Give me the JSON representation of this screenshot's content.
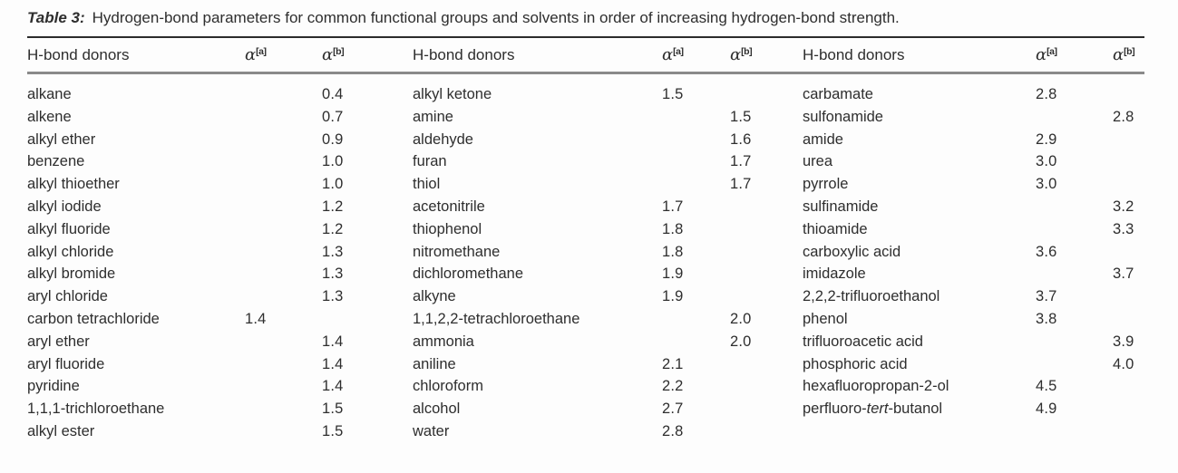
{
  "title": {
    "label": "Table 3:",
    "text": "Hydrogen-bond parameters for common functional groups and solvents in order of increasing hydrogen-bond strength."
  },
  "colors": {
    "background": "#fdfdfd",
    "text": "#2e2e2e",
    "rule_top": "#2b2b2b",
    "rule_header": "#8a8a8a"
  },
  "table": {
    "header": {
      "donors": "H-bond donors",
      "alpha": "α",
      "sup_a": "[a]",
      "sup_b": "[b]"
    },
    "groups": [
      {
        "rows": [
          [
            "alkane",
            "",
            "0.4"
          ],
          [
            "alkene",
            "",
            "0.7"
          ],
          [
            "alkyl ether",
            "",
            "0.9"
          ],
          [
            "benzene",
            "",
            "1.0"
          ],
          [
            "alkyl thioether",
            "",
            "1.0"
          ],
          [
            "alkyl iodide",
            "",
            "1.2"
          ],
          [
            "alkyl fluoride",
            "",
            "1.2"
          ],
          [
            "alkyl chloride",
            "",
            "1.3"
          ],
          [
            "alkyl bromide",
            "",
            "1.3"
          ],
          [
            "aryl chloride",
            "",
            "1.3"
          ],
          [
            "carbon tetrachloride",
            "1.4",
            ""
          ],
          [
            "aryl ether",
            "",
            "1.4"
          ],
          [
            "aryl fluoride",
            "",
            "1.4"
          ],
          [
            "pyridine",
            "",
            "1.4"
          ],
          [
            "1,1,1-trichloroethane",
            "",
            "1.5"
          ],
          [
            "alkyl ester",
            "",
            "1.5"
          ]
        ]
      },
      {
        "rows": [
          [
            "alkyl ketone",
            "1.5",
            ""
          ],
          [
            "amine",
            "",
            "1.5"
          ],
          [
            "aldehyde",
            "",
            "1.6"
          ],
          [
            "furan",
            "",
            "1.7"
          ],
          [
            "thiol",
            "",
            "1.7"
          ],
          [
            "acetonitrile",
            "1.7",
            ""
          ],
          [
            "thiophenol",
            "1.8",
            ""
          ],
          [
            "nitromethane",
            "1.8",
            ""
          ],
          [
            "dichloromethane",
            "1.9",
            ""
          ],
          [
            "alkyne",
            "1.9",
            ""
          ],
          [
            "1,1,2,2-tetrachloroethane",
            "",
            "2.0"
          ],
          [
            "ammonia",
            "",
            "2.0"
          ],
          [
            "aniline",
            "2.1",
            ""
          ],
          [
            "chloroform",
            "2.2",
            ""
          ],
          [
            "alcohol",
            "2.7",
            ""
          ],
          [
            "water",
            "2.8",
            ""
          ]
        ]
      },
      {
        "rows": [
          [
            "carbamate",
            "2.8",
            ""
          ],
          [
            "sulfonamide",
            "",
            "2.8"
          ],
          [
            "amide",
            "2.9",
            ""
          ],
          [
            "urea",
            "3.0",
            ""
          ],
          [
            "pyrrole",
            "3.0",
            ""
          ],
          [
            "sulfinamide",
            "",
            "3.2"
          ],
          [
            "thioamide",
            "",
            "3.3"
          ],
          [
            "carboxylic acid",
            "3.6",
            ""
          ],
          [
            "imidazole",
            "",
            "3.7"
          ],
          [
            "2,2,2-trifluoroethanol",
            "3.7",
            ""
          ],
          [
            "phenol",
            "3.8",
            ""
          ],
          [
            "trifluoroacetic acid",
            "",
            "3.9"
          ],
          [
            "phosphoric acid",
            "",
            "4.0"
          ],
          [
            "hexafluoropropan-2-ol",
            "4.5",
            ""
          ],
          [
            "perfluoro-*tert*-butanol",
            "4.9",
            ""
          ]
        ]
      }
    ]
  }
}
